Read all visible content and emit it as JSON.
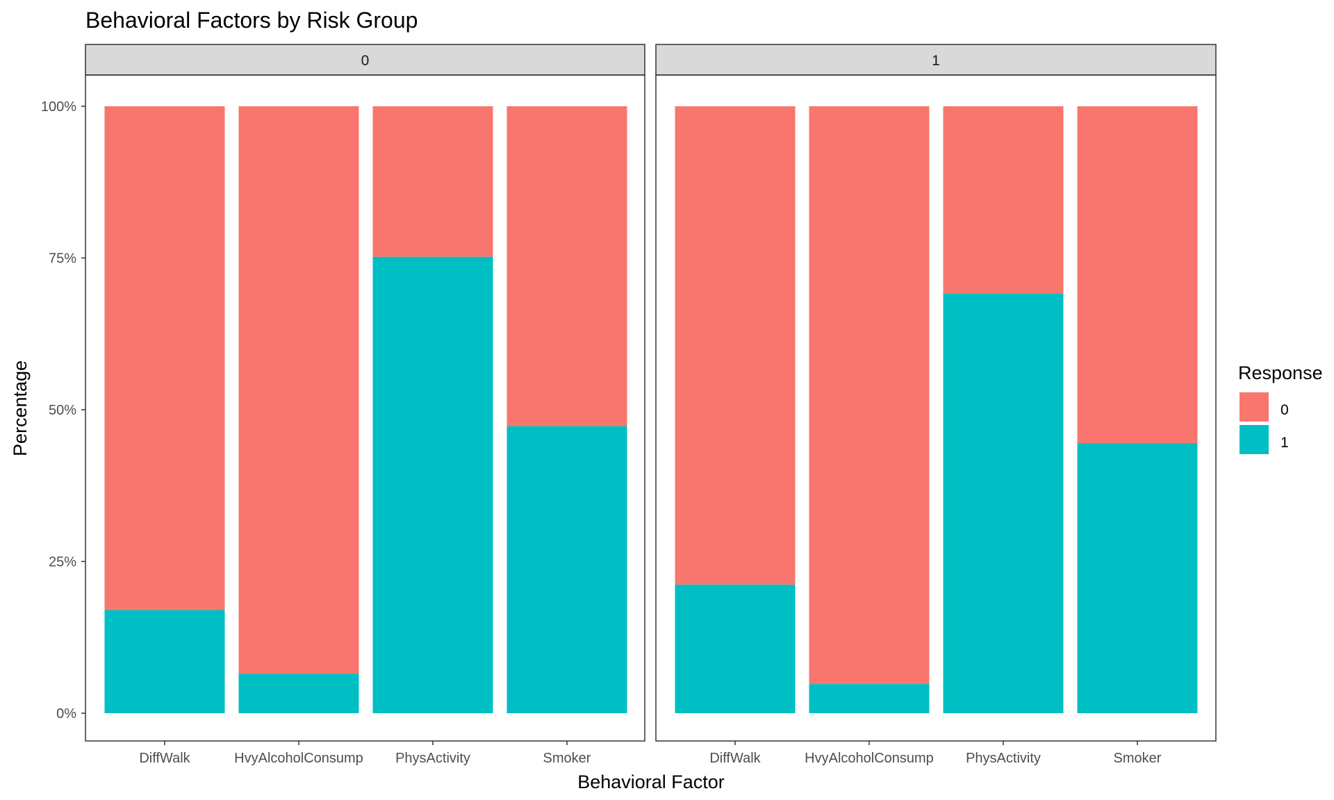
{
  "chart_data": {
    "type": "bar",
    "stacked": true,
    "title": "Behavioral Factors by Risk Group",
    "xlabel": "Behavioral Factor",
    "ylabel": "Percentage",
    "ylim": [
      0,
      1
    ],
    "yticks": [
      "0%",
      "25%",
      "50%",
      "75%",
      "100%"
    ],
    "categories": [
      "DiffWalk",
      "HvyAlcoholConsump",
      "PhysActivity",
      "Smoker"
    ],
    "legend": {
      "title": "Response",
      "position": "right",
      "entries": [
        {
          "label": "0",
          "color": "#F8766D"
        },
        {
          "label": "1",
          "color": "#00BFC4"
        }
      ]
    },
    "panels": [
      {
        "label": "0",
        "series": [
          {
            "name": "1",
            "values": [
              0.17,
              0.065,
              0.752,
              0.473
            ]
          },
          {
            "name": "0",
            "values": [
              0.83,
              0.935,
              0.248,
              0.527
            ]
          }
        ]
      },
      {
        "label": "1",
        "series": [
          {
            "name": "1",
            "values": [
              0.212,
              0.048,
              0.692,
              0.445
            ]
          },
          {
            "name": "0",
            "values": [
              0.788,
              0.952,
              0.308,
              0.555
            ]
          }
        ]
      }
    ],
    "grid": false,
    "colors": {
      "0": "#F8766D",
      "1": "#00BFC4",
      "strip_bg": "#D9D9D9",
      "panel_border": "#333333",
      "axis_text": "#4D4D4D"
    }
  }
}
